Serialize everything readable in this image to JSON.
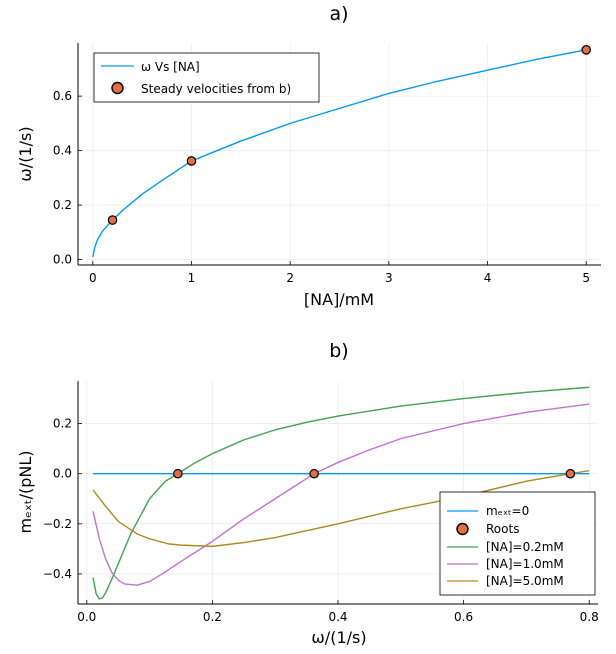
{
  "chart_data": [
    {
      "type": "line",
      "title": "a)",
      "xlabel": "[NA]/mM",
      "ylabel": "ω/(1/s)",
      "xlim": [
        -0.15,
        5.15
      ],
      "ylim": [
        -0.02,
        0.795
      ],
      "xticks": [
        0,
        1,
        2,
        3,
        4,
        5
      ],
      "xtick_labels": [
        "0",
        "1",
        "2",
        "3",
        "4",
        "5"
      ],
      "yticks": [
        0.0,
        0.2,
        0.4,
        0.6
      ],
      "ytick_labels": [
        "0.0",
        "0.2",
        "0.4",
        "0.6"
      ],
      "grid": true,
      "legend_position": "top-left",
      "series": [
        {
          "name": "ω Vs [NA]",
          "kind": "line",
          "color": "#009AFA",
          "x": [
            0,
            0.02,
            0.05,
            0.1,
            0.2,
            0.3,
            0.5,
            0.7,
            1.0,
            1.5,
            2.0,
            2.5,
            3.0,
            3.5,
            4.0,
            4.5,
            5.0
          ],
          "y": [
            0.01,
            0.045,
            0.075,
            0.105,
            0.145,
            0.18,
            0.24,
            0.29,
            0.362,
            0.435,
            0.5,
            0.555,
            0.61,
            0.655,
            0.695,
            0.735,
            0.77
          ]
        },
        {
          "name": "Steady velocities from b)",
          "kind": "scatter",
          "color": "#E26F46",
          "x": [
            0.2,
            1.0,
            5.0
          ],
          "y": [
            0.145,
            0.362,
            0.77
          ]
        }
      ]
    },
    {
      "type": "line",
      "title": "b)",
      "xlabel": "ω/(1/s)",
      "ylabel": "mₑₓₜ/(pNL)",
      "xlim": [
        -0.014,
        0.814
      ],
      "ylim": [
        -0.52,
        0.37
      ],
      "xticks": [
        0.0,
        0.2,
        0.4,
        0.6,
        0.8
      ],
      "xtick_labels": [
        "0.0",
        "0.2",
        "0.4",
        "0.6",
        "0.8"
      ],
      "yticks": [
        -0.4,
        -0.2,
        0.0,
        0.2
      ],
      "ytick_labels": [
        "−0.4",
        "−0.2",
        "0.0",
        "0.2"
      ],
      "grid": true,
      "legend_position": "bottom-right",
      "series": [
        {
          "name": "mₑₓₜ=0",
          "kind": "line",
          "color": "#009AFA",
          "x": [
            0.01,
            0.8
          ],
          "y": [
            0.0,
            0.0
          ]
        },
        {
          "name": "Roots",
          "kind": "scatter",
          "color": "#E26F46",
          "x": [
            0.145,
            0.362,
            0.77
          ],
          "y": [
            0.0,
            0.0,
            0.0
          ]
        },
        {
          "name": "[NA]=0.2mM",
          "kind": "line",
          "color": "#3EA44E",
          "x": [
            0.01,
            0.015,
            0.02,
            0.025,
            0.03,
            0.04,
            0.05,
            0.07,
            0.1,
            0.125,
            0.145,
            0.17,
            0.2,
            0.25,
            0.3,
            0.35,
            0.4,
            0.5,
            0.6,
            0.7,
            0.8
          ],
          "y": [
            -0.415,
            -0.48,
            -0.5,
            -0.495,
            -0.475,
            -0.42,
            -0.36,
            -0.24,
            -0.1,
            -0.03,
            0.0,
            0.04,
            0.08,
            0.135,
            0.175,
            0.205,
            0.23,
            0.27,
            0.3,
            0.325,
            0.345
          ]
        },
        {
          "name": "[NA]=1.0mM",
          "kind": "line",
          "color": "#C271D2",
          "x": [
            0.01,
            0.02,
            0.03,
            0.04,
            0.05,
            0.06,
            0.08,
            0.1,
            0.12,
            0.15,
            0.2,
            0.25,
            0.3,
            0.362,
            0.4,
            0.45,
            0.5,
            0.6,
            0.7,
            0.8
          ],
          "y": [
            -0.15,
            -0.26,
            -0.34,
            -0.395,
            -0.425,
            -0.44,
            -0.445,
            -0.43,
            -0.4,
            -0.35,
            -0.27,
            -0.18,
            -0.1,
            0.0,
            0.045,
            0.095,
            0.14,
            0.2,
            0.245,
            0.278
          ]
        },
        {
          "name": "[NA]=5.0mM",
          "kind": "line",
          "color": "#AD8A1D",
          "x": [
            0.01,
            0.03,
            0.05,
            0.08,
            0.1,
            0.13,
            0.15,
            0.2,
            0.25,
            0.3,
            0.4,
            0.5,
            0.6,
            0.7,
            0.77,
            0.8
          ],
          "y": [
            -0.065,
            -0.13,
            -0.19,
            -0.24,
            -0.26,
            -0.28,
            -0.285,
            -0.29,
            -0.275,
            -0.255,
            -0.2,
            -0.14,
            -0.09,
            -0.03,
            0.0,
            0.012
          ]
        }
      ]
    }
  ]
}
